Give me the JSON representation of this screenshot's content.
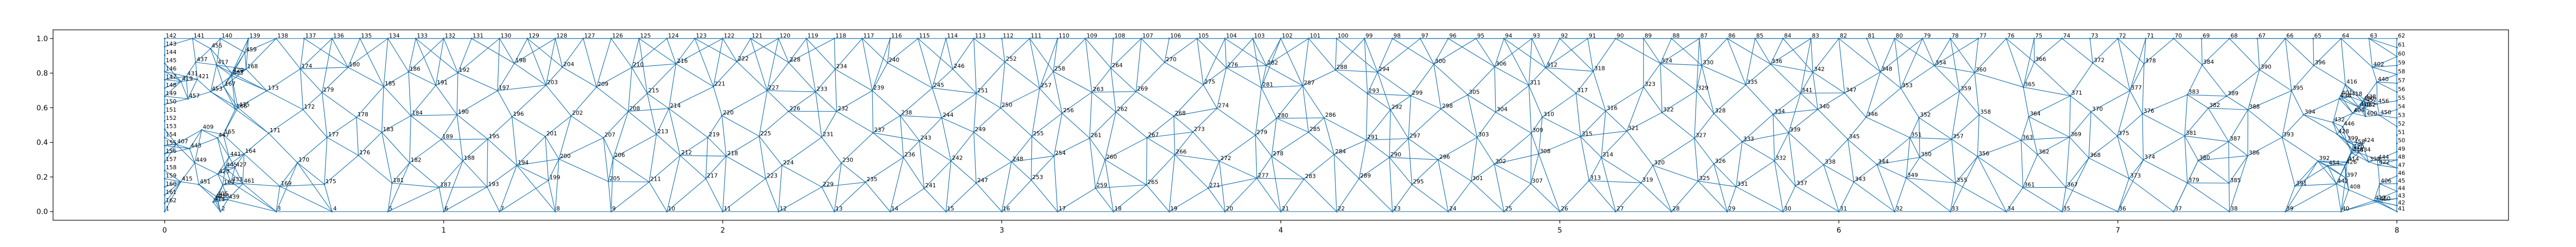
{
  "figure": {
    "background": "#ffffff"
  },
  "chart_data": {
    "type": "scatter",
    "plot": "triangle-mesh",
    "title": "",
    "xlabel": "",
    "ylabel": "",
    "xlim": [
      -0.4,
      8.4
    ],
    "ylim": [
      -0.05,
      1.05
    ],
    "grid": false,
    "legend": "none",
    "x_ticks": [
      0,
      1,
      2,
      3,
      4,
      5,
      6,
      7,
      8
    ],
    "x_tick_labels": [
      "0",
      "1",
      "2",
      "3",
      "4",
      "5",
      "6",
      "7",
      "8"
    ],
    "y_ticks": [
      0.0,
      0.2,
      0.4,
      0.6,
      0.8,
      1.0
    ],
    "y_tick_labels": [
      "0.0",
      "0.2",
      "0.4",
      "0.6",
      "0.8",
      "1.0"
    ],
    "edge_color": "#1f77b4",
    "label_color": "#000000",
    "mesh": {
      "bottom_nodes": {
        "x_start": 0,
        "x_end": 8,
        "count": 41,
        "first_label": 1
      },
      "right_nodes": {
        "x": 8,
        "count": 20,
        "first_label": 42
      },
      "top_nodes": {
        "x_start": 8,
        "x_end": 0,
        "count": 81,
        "first_label": 62
      },
      "left_nodes": {
        "x": 0,
        "count": 20,
        "first_label": 143
      },
      "interior": {
        "columns": 40,
        "rows": 6,
        "first_label": 163
      }
    }
  }
}
